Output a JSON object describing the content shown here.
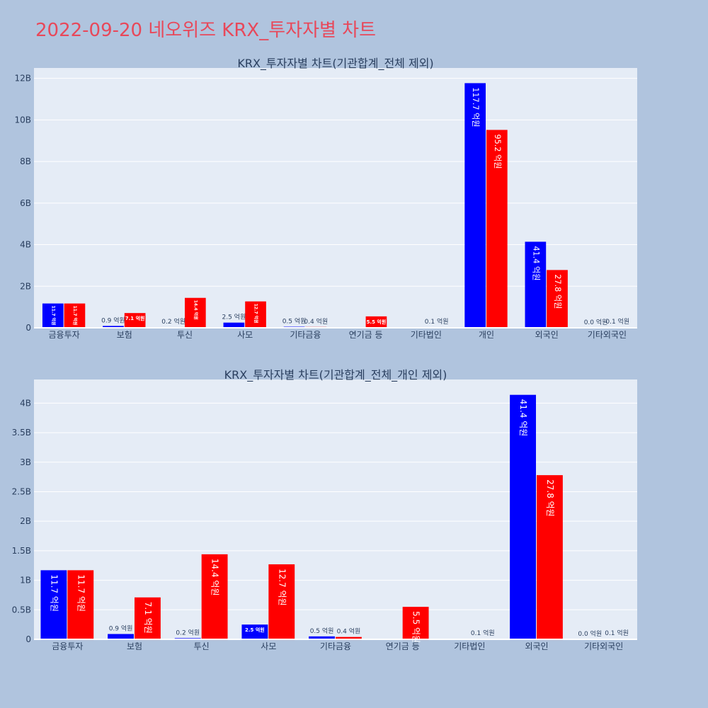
{
  "header": {
    "title": "2022-09-20 네오위즈 KRX_투자자별 차트"
  },
  "colors": {
    "buy": "#0000ff",
    "sell": "#ff0000",
    "plot_bg": "#e5ecf6",
    "page_bg": "#b0c4de",
    "title": "#e8485a"
  },
  "chart_data": [
    {
      "type": "bar",
      "title": "KRX_투자자별 차트(기관합계_전체 제외)",
      "categories": [
        "금융투자",
        "보험",
        "투신",
        "사모",
        "기타금융",
        "연기금 등",
        "기타법인",
        "개인",
        "외국인",
        "기타외국인"
      ],
      "ylim": [
        0,
        12500000000
      ],
      "yticks": [
        0,
        2000000000,
        4000000000,
        6000000000,
        8000000000,
        10000000000,
        12000000000
      ],
      "ytick_labels": [
        "0",
        "2B",
        "4B",
        "6B",
        "8B",
        "10B",
        "12B"
      ],
      "grid": true,
      "series": [
        {
          "color": "#0000ff",
          "values": [
            1170000000,
            90000000,
            20000000,
            250000000,
            50000000,
            0,
            0,
            11770000000,
            4140000000,
            0
          ],
          "labels": [
            "11.7 억원",
            "0.9 억원",
            "0.2 억원",
            "2.5 억원",
            "0.5 억원",
            "",
            "",
            "117.7 억원",
            "41.4 억원",
            "0.0 억원"
          ]
        },
        {
          "color": "#ff0000",
          "values": [
            1170000000,
            710000000,
            1440000000,
            1270000000,
            40000000,
            550000000,
            10000000,
            9520000000,
            2780000000,
            10000000
          ],
          "labels": [
            "11.7 억원",
            "7.1 억원",
            "14.4 억원",
            "12.7 억원",
            "0.4 억원",
            "5.5 억원",
            "0.1 억원",
            "95.2 억원",
            "27.8 억원",
            "0.1 억원"
          ]
        }
      ]
    },
    {
      "type": "bar",
      "title": "KRX_투자자별 차트(기관합계_전체_개인 제외)",
      "categories": [
        "금융투자",
        "보험",
        "투신",
        "사모",
        "기타금융",
        "연기금 등",
        "기타법인",
        "외국인",
        "기타외국인"
      ],
      "ylim": [
        0,
        4400000000
      ],
      "yticks": [
        0,
        500000000,
        1000000000,
        1500000000,
        2000000000,
        2500000000,
        3000000000,
        3500000000,
        4000000000
      ],
      "ytick_labels": [
        "0",
        "0.5B",
        "1B",
        "1.5B",
        "2B",
        "2.5B",
        "3B",
        "3.5B",
        "4B"
      ],
      "grid": true,
      "series": [
        {
          "color": "#0000ff",
          "values": [
            1170000000,
            90000000,
            20000000,
            250000000,
            50000000,
            0,
            0,
            4140000000,
            0
          ],
          "labels": [
            "11.7 억원",
            "0.9 억원",
            "0.2 억원",
            "2.5 억원",
            "0.5 억원",
            "",
            "",
            "41.4 억원",
            "0.0 억원"
          ]
        },
        {
          "color": "#ff0000",
          "values": [
            1170000000,
            710000000,
            1440000000,
            1270000000,
            40000000,
            550000000,
            10000000,
            2780000000,
            10000000
          ],
          "labels": [
            "11.7 억원",
            "7.1 억원",
            "14.4 억원",
            "12.7 억원",
            "0.4 억원",
            "5.5 억원",
            "0.1 억원",
            "27.8 억원",
            "0.1 억원"
          ]
        }
      ]
    }
  ]
}
